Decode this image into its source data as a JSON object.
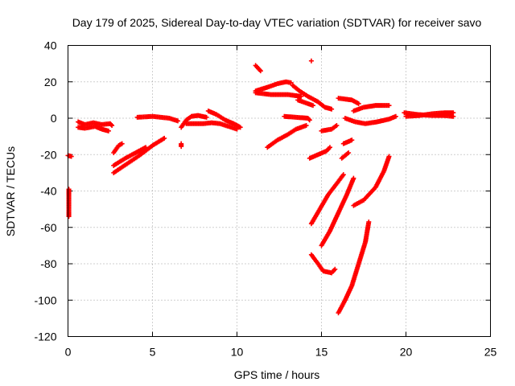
{
  "chart_data": {
    "type": "scatter",
    "title": "Day 179 of 2025, Sidereal Day-to-day VTEC variation (SDTVAR) for receiver savo",
    "xlabel": "GPS time / hours",
    "ylabel": "SDTVAR / TECUs",
    "xlim": [
      0,
      25
    ],
    "ylim": [
      -120,
      40
    ],
    "xticks": [
      0,
      5,
      10,
      15,
      20,
      25
    ],
    "yticks": [
      -120,
      -100,
      -80,
      -60,
      -40,
      -20,
      0,
      20,
      40
    ],
    "grid": true,
    "marker": "+",
    "color": "#ff0000",
    "series": [
      {
        "name": "seg01",
        "points": [
          [
            0.0,
            -20.5
          ],
          [
            0.2,
            -21.0
          ]
        ]
      },
      {
        "name": "seg02",
        "points": [
          [
            0.05,
            -39
          ],
          [
            0.05,
            -42
          ],
          [
            0.05,
            -46
          ],
          [
            0.05,
            -50
          ],
          [
            0.05,
            -54
          ]
        ]
      },
      {
        "name": "seg03",
        "points": [
          [
            0.6,
            -2
          ],
          [
            1.0,
            -3.5
          ],
          [
            1.5,
            -2.5
          ],
          [
            2.0,
            -3.5
          ],
          [
            2.5,
            -3
          ],
          [
            2.6,
            -4
          ]
        ]
      },
      {
        "name": "seg04",
        "points": [
          [
            0.6,
            -5
          ],
          [
            1.0,
            -5.5
          ],
          [
            1.6,
            -4.5
          ],
          [
            2.0,
            -6
          ],
          [
            2.4,
            -7
          ]
        ]
      },
      {
        "name": "seg05",
        "points": [
          [
            2.7,
            -19
          ],
          [
            3.0,
            -15
          ],
          [
            3.2,
            -14
          ]
        ]
      },
      {
        "name": "seg06",
        "points": [
          [
            2.7,
            -30
          ],
          [
            3.5,
            -25
          ],
          [
            4.3,
            -20
          ],
          [
            5.0,
            -15
          ],
          [
            5.7,
            -11
          ]
        ]
      },
      {
        "name": "seg07",
        "points": [
          [
            2.7,
            -26
          ],
          [
            3.4,
            -22
          ],
          [
            4.0,
            -19
          ],
          [
            4.6,
            -16
          ]
        ]
      },
      {
        "name": "seg08",
        "points": [
          [
            4.1,
            0.5
          ],
          [
            5.0,
            1
          ],
          [
            6.0,
            0
          ],
          [
            6.5,
            -1.5
          ]
        ]
      },
      {
        "name": "seg09",
        "points": [
          [
            6.7,
            -14
          ],
          [
            6.7,
            -15.5
          ]
        ]
      },
      {
        "name": "seg10",
        "points": [
          [
            6.7,
            -5
          ],
          [
            7.0,
            -1
          ],
          [
            7.3,
            1
          ],
          [
            7.7,
            1.5
          ],
          [
            8.2,
            0.5
          ]
        ]
      },
      {
        "name": "seg11",
        "points": [
          [
            7.0,
            -3
          ],
          [
            7.5,
            -3
          ],
          [
            8.0,
            -3
          ],
          [
            8.5,
            -2.5
          ],
          [
            9.0,
            -3
          ],
          [
            9.5,
            -4.5
          ],
          [
            10.0,
            -6
          ]
        ]
      },
      {
        "name": "seg12",
        "points": [
          [
            8.3,
            4
          ],
          [
            8.8,
            2
          ],
          [
            9.3,
            -1
          ],
          [
            9.8,
            -3
          ],
          [
            10.2,
            -5
          ]
        ]
      },
      {
        "name": "seg13",
        "points": [
          [
            11.1,
            29
          ],
          [
            11.4,
            26
          ]
        ]
      },
      {
        "name": "seg14",
        "points": [
          [
            11.1,
            15
          ],
          [
            11.8,
            17
          ],
          [
            12.4,
            19
          ],
          [
            12.9,
            20
          ],
          [
            13.2,
            19.5
          ]
        ]
      },
      {
        "name": "seg15",
        "points": [
          [
            11.1,
            14
          ],
          [
            12.0,
            13
          ],
          [
            13.0,
            13
          ],
          [
            13.8,
            12
          ]
        ]
      },
      {
        "name": "seg16",
        "points": [
          [
            13.3,
            18
          ],
          [
            13.7,
            15
          ],
          [
            14.2,
            12
          ],
          [
            14.8,
            9
          ],
          [
            15.2,
            6
          ],
          [
            15.6,
            5
          ]
        ]
      },
      {
        "name": "seg17",
        "points": [
          [
            13.6,
            10
          ],
          [
            14.2,
            8
          ],
          [
            14.5,
            7
          ]
        ]
      },
      {
        "name": "seg18",
        "points": [
          [
            11.8,
            -16
          ],
          [
            12.4,
            -12
          ],
          [
            13.0,
            -9
          ],
          [
            13.5,
            -6
          ],
          [
            14.1,
            -4
          ]
        ]
      },
      {
        "name": "seg19",
        "points": [
          [
            12.8,
            1
          ],
          [
            13.5,
            0.5
          ],
          [
            14.2,
            0
          ],
          [
            14.3,
            -1
          ]
        ]
      },
      {
        "name": "seg20",
        "points": [
          [
            14.4,
            31.5
          ]
        ]
      },
      {
        "name": "seg21",
        "points": [
          [
            14.3,
            -22
          ],
          [
            14.8,
            -20
          ],
          [
            15.3,
            -18
          ],
          [
            15.5,
            -16
          ]
        ]
      },
      {
        "name": "seg22",
        "points": [
          [
            15.0,
            -7
          ],
          [
            15.6,
            -6
          ],
          [
            15.9,
            -4
          ]
        ]
      },
      {
        "name": "seg23",
        "points": [
          [
            16.0,
            11
          ],
          [
            16.8,
            10
          ],
          [
            17.2,
            8
          ]
        ]
      },
      {
        "name": "seg24",
        "points": [
          [
            14.4,
            -58
          ],
          [
            14.9,
            -50
          ],
          [
            15.4,
            -42
          ],
          [
            15.9,
            -36
          ],
          [
            16.3,
            -31
          ]
        ]
      },
      {
        "name": "seg25",
        "points": [
          [
            14.4,
            -75
          ],
          [
            14.8,
            -80
          ],
          [
            15.1,
            -84
          ],
          [
            15.6,
            -85
          ],
          [
            15.8,
            -83
          ]
        ]
      },
      {
        "name": "seg26",
        "points": [
          [
            15.0,
            -70
          ],
          [
            15.5,
            -62
          ],
          [
            16.0,
            -52
          ],
          [
            16.5,
            -42
          ],
          [
            16.9,
            -33
          ]
        ]
      },
      {
        "name": "seg27",
        "points": [
          [
            16.3,
            -14
          ],
          [
            16.8,
            -12
          ]
        ]
      },
      {
        "name": "seg28",
        "points": [
          [
            16.2,
            -22
          ],
          [
            16.6,
            -19
          ]
        ]
      },
      {
        "name": "seg29",
        "points": [
          [
            16.0,
            -107
          ],
          [
            16.4,
            -100
          ],
          [
            16.8,
            -92
          ],
          [
            17.2,
            -80
          ],
          [
            17.6,
            -68
          ],
          [
            17.8,
            -57
          ]
        ]
      },
      {
        "name": "seg30",
        "points": [
          [
            16.9,
            -48
          ],
          [
            17.5,
            -45
          ],
          [
            18.2,
            -38
          ],
          [
            18.7,
            -29
          ],
          [
            19.0,
            -21
          ]
        ]
      },
      {
        "name": "seg31",
        "points": [
          [
            16.9,
            4
          ],
          [
            17.5,
            6
          ],
          [
            18.2,
            7
          ],
          [
            19.0,
            7
          ]
        ]
      },
      {
        "name": "seg32",
        "points": [
          [
            16.4,
            0
          ],
          [
            17.0,
            -2
          ],
          [
            17.6,
            -3
          ],
          [
            18.3,
            -2
          ],
          [
            19.0,
            -0.5
          ],
          [
            19.4,
            1
          ]
        ]
      },
      {
        "name": "seg33",
        "points": [
          [
            19.9,
            3
          ],
          [
            20.7,
            2
          ],
          [
            21.5,
            1.5
          ],
          [
            22.2,
            1.5
          ],
          [
            22.8,
            1
          ]
        ]
      },
      {
        "name": "seg34",
        "points": [
          [
            20.0,
            1
          ],
          [
            20.8,
            1.5
          ],
          [
            21.6,
            2.5
          ],
          [
            22.3,
            3
          ],
          [
            22.8,
            3
          ]
        ]
      }
    ]
  }
}
